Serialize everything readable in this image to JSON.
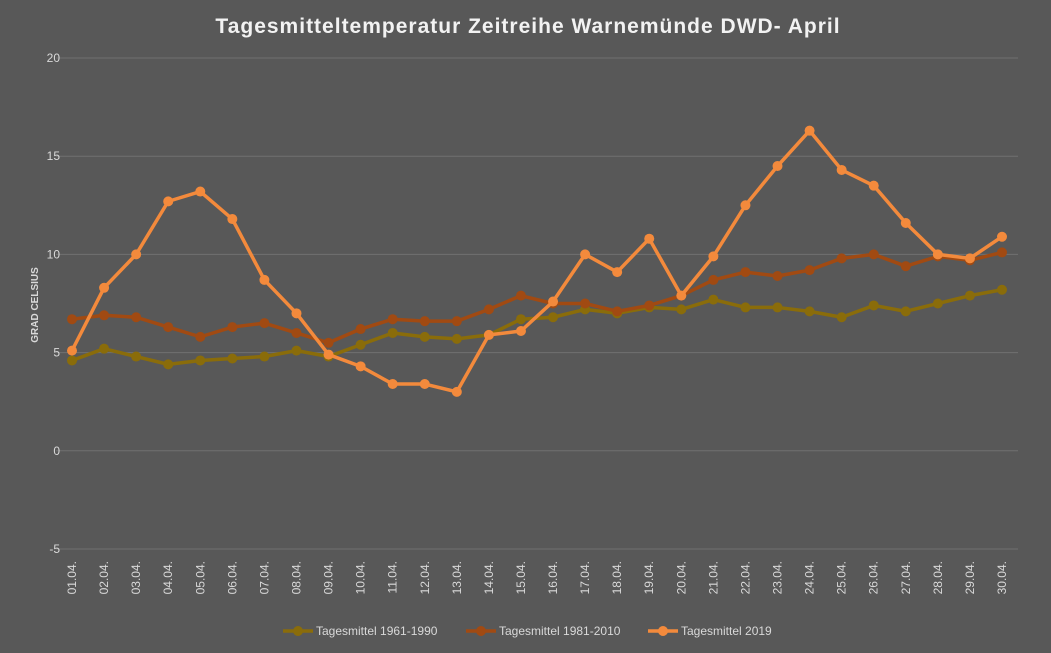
{
  "chart_data": {
    "type": "line",
    "title": "Tagesmitteltemperatur  Zeitreihe Warnemünde DWD- April",
    "xlabel": "",
    "ylabel": "GRAD CELSIUS",
    "ylim": [
      -5,
      20
    ],
    "yticks": [
      -5,
      0,
      5,
      10,
      15,
      20
    ],
    "grid": true,
    "legend_position": "bottom",
    "x": [
      "01.04.",
      "02.04.",
      "03.04.",
      "04.04.",
      "05.04.",
      "06.04.",
      "07.04.",
      "08.04.",
      "09.04.",
      "10.04.",
      "11.04.",
      "12.04.",
      "13.04.",
      "14.04.",
      "15.04.",
      "16.04.",
      "17.04.",
      "18.04.",
      "19.04.",
      "20.04.",
      "21.04.",
      "22.04.",
      "23.04.",
      "24.04.",
      "25.04.",
      "26.04.",
      "27.04.",
      "28.04.",
      "29.04.",
      "30.04."
    ],
    "series": [
      {
        "name": "Tagesmittel 1961-1990",
        "color": "#8a6c0a",
        "values": [
          4.6,
          5.2,
          4.8,
          4.4,
          4.6,
          4.7,
          4.8,
          5.1,
          4.8,
          5.4,
          6.0,
          5.8,
          5.7,
          5.9,
          6.7,
          6.8,
          7.2,
          7.0,
          7.3,
          7.2,
          7.7,
          7.3,
          7.3,
          7.1,
          6.8,
          7.4,
          7.1,
          7.5,
          7.9,
          8.2
        ]
      },
      {
        "name": "Tagesmittel 1981-2010",
        "color": "#a14a12",
        "values": [
          6.7,
          6.9,
          6.8,
          6.3,
          5.8,
          6.3,
          6.5,
          6.0,
          5.5,
          6.2,
          6.7,
          6.6,
          6.6,
          7.2,
          7.9,
          7.5,
          7.5,
          7.1,
          7.4,
          7.9,
          8.7,
          9.1,
          8.9,
          9.2,
          9.8,
          10.0,
          9.4,
          9.9,
          9.7,
          10.1
        ]
      },
      {
        "name": "Tagesmittel 2019",
        "color": "#f38a3c",
        "values": [
          5.1,
          8.3,
          10.0,
          12.7,
          13.2,
          11.8,
          8.7,
          7.0,
          4.9,
          4.3,
          3.4,
          3.4,
          3.0,
          5.9,
          6.1,
          7.6,
          10.0,
          9.1,
          10.8,
          7.9,
          9.9,
          12.5,
          14.5,
          16.3,
          14.3,
          13.5,
          11.6,
          10.0,
          9.8,
          10.9
        ]
      }
    ]
  }
}
